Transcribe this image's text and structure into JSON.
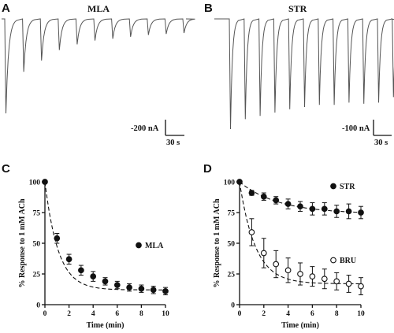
{
  "panels": {
    "A": {
      "letter": "A",
      "title": "MLA",
      "scale_current": "-200 nA",
      "scale_time": "30 s"
    },
    "B": {
      "letter": "B",
      "title": "STR",
      "scale_current": "-100 nA",
      "scale_time": "30 s"
    },
    "C": {
      "letter": "C"
    },
    "D": {
      "letter": "D"
    }
  },
  "colors": {
    "ink": "#111111",
    "trace": "#555555",
    "open_fill": "#ffffff"
  },
  "chart_data": [
    {
      "id": "A",
      "type": "line",
      "description_kind": "current trace",
      "title": "MLA",
      "peaks_relative": [
        1.0,
        0.56,
        0.44,
        0.33,
        0.27,
        0.23,
        0.21,
        0.19,
        0.17,
        0.16,
        0.15
      ]
    },
    {
      "id": "B",
      "type": "line",
      "description_kind": "current trace",
      "title": "STR",
      "peaks_relative": [
        1.0,
        0.91,
        0.88,
        0.85,
        0.82,
        0.8,
        0.78,
        0.78,
        0.76,
        0.77,
        0.76,
        0.71
      ]
    },
    {
      "id": "C",
      "type": "scatter",
      "xlabel": "Time (min)",
      "ylabel": "% Response to 1 mM ACh",
      "xlim": [
        0,
        10
      ],
      "ylim": [
        0,
        100
      ],
      "xticks": [
        0,
        2,
        4,
        6,
        8,
        10
      ],
      "yticks": [
        0,
        25,
        50,
        75,
        100
      ],
      "series": [
        {
          "name": "MLA",
          "marker": "filled-circle",
          "x": [
            0,
            1,
            2,
            3,
            4,
            5,
            6,
            7,
            8,
            9,
            10
          ],
          "y": [
            100,
            54,
            37,
            28,
            23,
            19,
            16,
            14,
            13,
            12,
            11
          ],
          "err": [
            0,
            4,
            4,
            4,
            4,
            3,
            3,
            3,
            3,
            3,
            3
          ],
          "fit": {
            "form": "exponential",
            "plateau": 12,
            "tau_min": 1.1
          }
        }
      ],
      "legend_position": "right"
    },
    {
      "id": "D",
      "type": "scatter",
      "xlabel": "Time (min)",
      "ylabel": "% Response to 1 mM ACh",
      "xlim": [
        0,
        10
      ],
      "ylim": [
        0,
        100
      ],
      "xticks": [
        0,
        2,
        4,
        6,
        8,
        10
      ],
      "yticks": [
        0,
        25,
        50,
        75,
        100
      ],
      "series": [
        {
          "name": "STR",
          "marker": "filled-circle",
          "x": [
            0,
            1,
            2,
            3,
            4,
            5,
            6,
            7,
            8,
            9,
            10
          ],
          "y": [
            100,
            91,
            88,
            85,
            82,
            80,
            78,
            78,
            76,
            76,
            75
          ],
          "err": [
            0,
            2,
            3,
            3,
            4,
            4,
            5,
            5,
            5,
            6,
            5
          ],
          "fit": {
            "form": "exponential",
            "plateau": 74,
            "tau_min": 3.2
          }
        },
        {
          "name": "BRU",
          "marker": "open-circle",
          "x": [
            1,
            2,
            3,
            4,
            5,
            6,
            7,
            8,
            9,
            10
          ],
          "y": [
            59,
            42,
            33,
            28,
            25,
            23,
            21,
            19,
            17,
            15
          ],
          "err": [
            11,
            12,
            11,
            10,
            9,
            8,
            8,
            7,
            7,
            7
          ],
          "fit": {
            "form": "exponential",
            "plateau": 17,
            "tau_min": 1.3
          }
        }
      ],
      "legend_position": "right"
    }
  ]
}
